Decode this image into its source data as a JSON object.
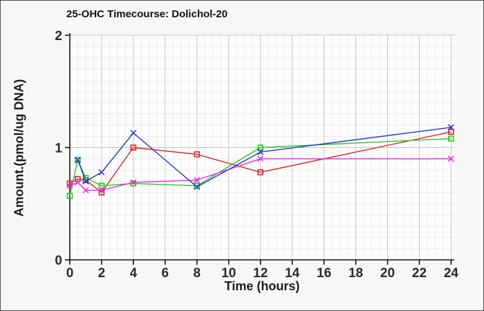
{
  "window": {
    "background": "#f7f7f7",
    "border_color": "#4d4d4d"
  },
  "chart_data": {
    "type": "line",
    "title": "25-OHC Timecourse: Dolichol-20",
    "xlabel": "Time (hours)",
    "ylabel": "Amount.(pmol/ug DNA)",
    "xlim": [
      0,
      24.2
    ],
    "ylim": [
      0,
      2
    ],
    "x_ticks": [
      0,
      2,
      4,
      6,
      8,
      10,
      12,
      14,
      16,
      18,
      20,
      22,
      24
    ],
    "y_ticks": [
      0,
      1,
      2
    ],
    "minor_x_step": 0.5,
    "minor_y_step": 0.1,
    "grid": {
      "on": true,
      "plot_bg": "#fdfdfd",
      "minor_color": "#ebebeb",
      "major_color": "#c4c4c4",
      "axis_color": "#111111",
      "tick_label_color": "#2a2a2a"
    },
    "legend_position": "none",
    "series": [
      {
        "name": "red-squares",
        "color": "#dd2222",
        "marker": "square",
        "points": [
          [
            0,
            0.68
          ],
          [
            0.5,
            0.72
          ],
          [
            1,
            0.71
          ],
          [
            2,
            0.6
          ],
          [
            4,
            1.0
          ],
          [
            8,
            0.94
          ],
          [
            12,
            0.78
          ],
          [
            24,
            1.14
          ]
        ]
      },
      {
        "name": "green-squares",
        "color": "#22cc22",
        "marker": "square",
        "points": [
          [
            0,
            0.57
          ],
          [
            0.5,
            0.89
          ],
          [
            1,
            0.73
          ],
          [
            2,
            0.66
          ],
          [
            4,
            0.68
          ],
          [
            8,
            0.66
          ],
          [
            12,
            1.0
          ],
          [
            24,
            1.08
          ]
        ]
      },
      {
        "name": "magenta-crosses",
        "color": "#ee22ee",
        "marker": "x",
        "points": [
          [
            0,
            0.66
          ],
          [
            0.5,
            0.69
          ],
          [
            1,
            0.62
          ],
          [
            2,
            0.62
          ],
          [
            4,
            0.69
          ],
          [
            8,
            0.71
          ],
          [
            12,
            0.9
          ],
          [
            24,
            0.9
          ]
        ]
      },
      {
        "name": "blue-crosses",
        "color": "#2233cc",
        "marker": "x",
        "points": [
          [
            0.5,
            0.89
          ],
          [
            1,
            0.7
          ],
          [
            2,
            0.78
          ],
          [
            4,
            1.13
          ],
          [
            8,
            0.65
          ],
          [
            12,
            0.96
          ],
          [
            24,
            1.18
          ]
        ]
      }
    ]
  }
}
